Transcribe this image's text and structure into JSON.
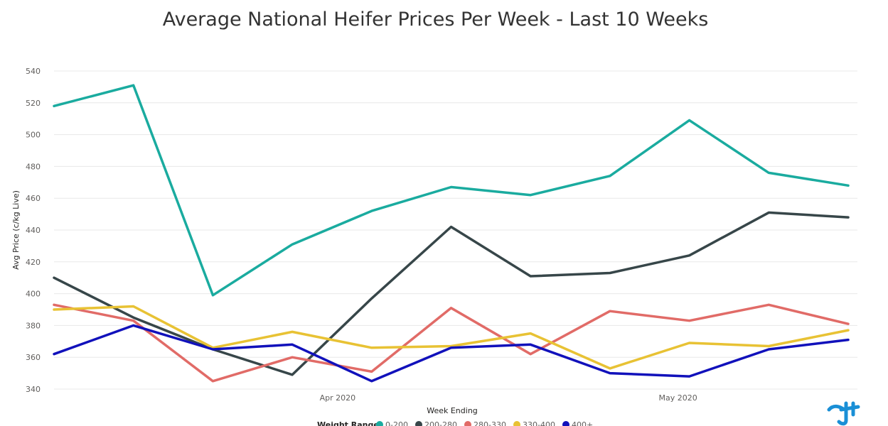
{
  "chart_data": {
    "type": "line",
    "title": "Average National Heifer Prices Per Week - Last 10 Weeks",
    "xlabel": "Week Ending",
    "ylabel": "Avg Price (c/kg Live)",
    "ylim": [
      340,
      540
    ],
    "yticks": [
      340,
      360,
      380,
      400,
      420,
      440,
      460,
      480,
      500,
      520,
      540
    ],
    "x": [
      "2020-03-07",
      "2020-03-14",
      "2020-03-21",
      "2020-03-28",
      "2020-04-04",
      "2020-04-11",
      "2020-04-18",
      "2020-04-25",
      "2020-05-02",
      "2020-05-09",
      "2020-05-16"
    ],
    "x_tick_labels": [
      {
        "label": "Apr 2020",
        "at": "2020-04-01"
      },
      {
        "label": "May 2020",
        "at": "2020-05-01"
      }
    ],
    "grid": true,
    "legend": {
      "title": "Weight Range",
      "position": "bottom"
    },
    "series": [
      {
        "name": "0-200",
        "color": "#1aab9f",
        "values": [
          518,
          531,
          399,
          431,
          452,
          467,
          462,
          474,
          509,
          476,
          468
        ]
      },
      {
        "name": "200-280",
        "color": "#374649",
        "values": [
          410,
          385,
          365,
          349,
          397,
          442,
          411,
          413,
          424,
          451,
          448
        ]
      },
      {
        "name": "280-330",
        "color": "#e16b67",
        "values": [
          393,
          383,
          345,
          360,
          351,
          391,
          362,
          389,
          383,
          393,
          381
        ]
      },
      {
        "name": "330-400",
        "color": "#e8c234",
        "values": [
          390,
          392,
          366,
          376,
          366,
          367,
          375,
          353,
          369,
          367,
          377
        ]
      },
      {
        "name": "400+",
        "color": "#1111bb",
        "values": [
          362,
          380,
          365,
          368,
          345,
          366,
          368,
          350,
          348,
          365,
          371
        ]
      }
    ]
  },
  "logo": {
    "icon": "brand-logo-icon",
    "color": "#1a8fd6"
  }
}
